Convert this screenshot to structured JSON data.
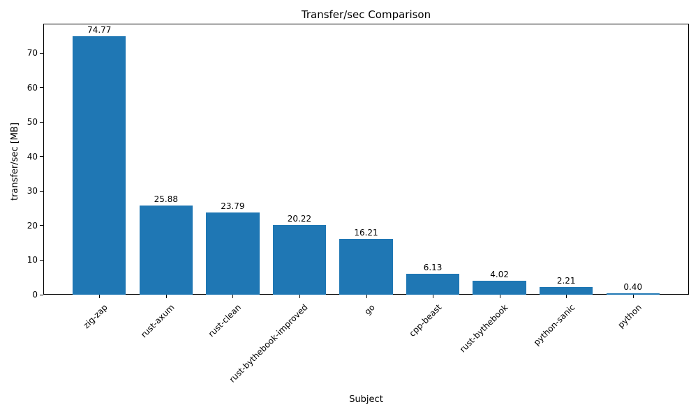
{
  "chart_data": {
    "type": "bar",
    "title": "Transfer/sec Comparison",
    "xlabel": "Subject",
    "ylabel": "transfer/sec [MB]",
    "categories": [
      "zig-zap",
      "rust-axum",
      "rust-clean",
      "rust-bythebook-improved",
      "go",
      "cpp-beast",
      "rust-bythebook",
      "python-sanic",
      "python"
    ],
    "values": [
      74.77,
      25.88,
      23.79,
      20.22,
      16.21,
      6.13,
      4.02,
      2.21,
      0.4
    ],
    "value_labels": [
      "74.77",
      "25.88",
      "23.79",
      "20.22",
      "16.21",
      "6.13",
      "4.02",
      "2.21",
      "0.40"
    ],
    "yticks": [
      0,
      10,
      20,
      30,
      40,
      50,
      60,
      70
    ],
    "ylim": [
      0,
      78.5
    ],
    "bar_width_fraction": 0.8,
    "bar_color": "#1f77b4",
    "text_color": "#000000",
    "grid": false,
    "legend": "none"
  }
}
